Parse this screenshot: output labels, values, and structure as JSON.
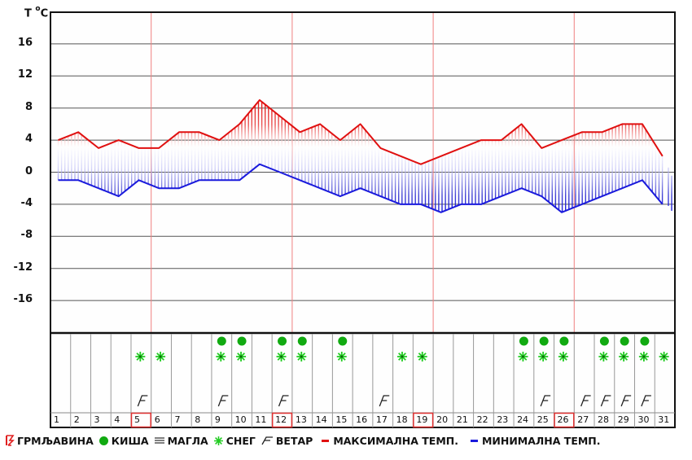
{
  "chart_data": {
    "type": "line",
    "title": "",
    "ylabel": "T °C",
    "xlabel": "",
    "ylim": [
      -20,
      20
    ],
    "yticks": [
      16,
      12,
      8,
      4,
      0,
      -4,
      -8,
      -12,
      -16
    ],
    "grid": true,
    "x": [
      1,
      2,
      3,
      4,
      5,
      6,
      7,
      8,
      9,
      10,
      11,
      12,
      13,
      14,
      15,
      16,
      17,
      18,
      19,
      20,
      21,
      22,
      23,
      24,
      25,
      26,
      27,
      28,
      29,
      30,
      31
    ],
    "series": [
      {
        "name": "МАКСИМАЛНА ТЕМП.",
        "color": "#e01010",
        "values": [
          4,
          5,
          3,
          4,
          3,
          3,
          5,
          5,
          4,
          6,
          9,
          7,
          5,
          6,
          4,
          6,
          3,
          2,
          1,
          2,
          3,
          4,
          4,
          6,
          3,
          4,
          5,
          5,
          6,
          6,
          2
        ]
      },
      {
        "name": "МИНИМАЛНА ТЕМП.",
        "color": "#1a1adc",
        "values": [
          -1,
          -1,
          -2,
          -3,
          -1,
          -2,
          -2,
          -1,
          -1,
          -1,
          1,
          0,
          -1,
          -2,
          -3,
          -2,
          -3,
          -4,
          -4,
          -5,
          -4,
          -4,
          -3,
          -2,
          -3,
          -5,
          -4,
          -3,
          -2,
          -1,
          -4
        ]
      }
    ],
    "week_separators_after_days": [
      5,
      12,
      19,
      26
    ],
    "highlighted_days": [
      5,
      12,
      19,
      26
    ],
    "weather": {
      "rain": [
        9,
        10,
        12,
        13,
        15,
        24,
        25,
        26,
        28,
        29,
        30
      ],
      "snow": [
        5,
        6,
        9,
        10,
        12,
        13,
        15,
        18,
        19,
        24,
        25,
        26,
        28,
        29,
        30,
        31
      ],
      "wind": [
        5,
        9,
        12,
        17,
        25,
        27,
        28,
        29,
        30
      ],
      "thunder": [],
      "fog": []
    },
    "legend_position": "bottom"
  },
  "axis": {
    "title": "T",
    "unit_sup": "o",
    "unit": "C",
    "y_tick_labels": [
      "16",
      "12",
      "8",
      "4",
      "0",
      "-4",
      "-8",
      "-12",
      "-16"
    ]
  },
  "days": [
    "1",
    "2",
    "3",
    "4",
    "5",
    "6",
    "7",
    "8",
    "9",
    "10",
    "11",
    "12",
    "13",
    "14",
    "15",
    "16",
    "17",
    "18",
    "19",
    "20",
    "21",
    "22",
    "23",
    "24",
    "25",
    "26",
    "27",
    "28",
    "29",
    "30",
    "31"
  ],
  "legend": {
    "thunder": "ГРМЉАВИНА",
    "rain": "КИША",
    "fog": "МАГЛА",
    "snow": "СНЕГ",
    "wind": "ВЕТАР",
    "max_temp": "МАКСИМАЛНА ТЕМП.",
    "min_temp": "МИНИМАЛНА ТЕМП."
  },
  "colors": {
    "max": "#e01010",
    "min": "#1a1adc",
    "grid": "#555555",
    "week_line": "#f08080",
    "rain": "#11aa11",
    "snow": "#22cc22",
    "highlight": "#e03030"
  }
}
